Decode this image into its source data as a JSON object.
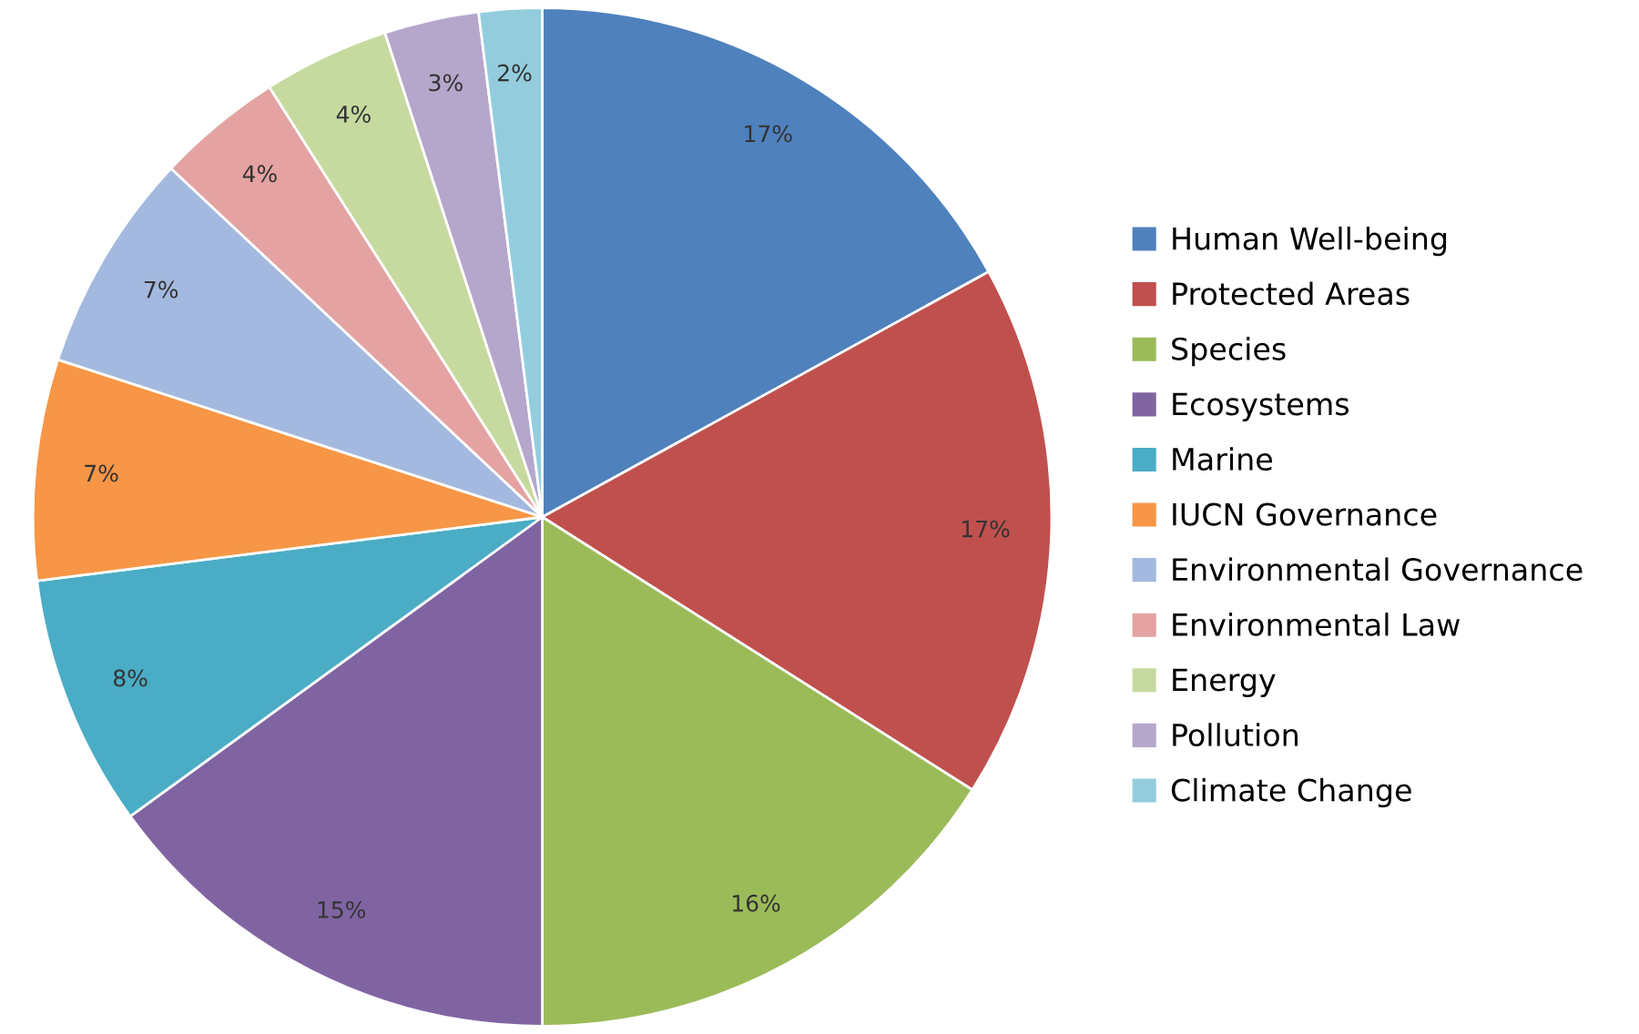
{
  "chart_data": {
    "type": "pie",
    "categories": [
      "Human Well-being",
      "Protected Areas",
      "Species",
      "Ecosystems",
      "Marine",
      "IUCN Governance",
      "Environmental Governance",
      "Environmental Law",
      "Energy",
      "Pollution",
      "Climate Change"
    ],
    "values": [
      17,
      17,
      16,
      15,
      8,
      7,
      7,
      4,
      4,
      3,
      2
    ],
    "colors": [
      "#4f81bd",
      "#c0504d",
      "#9bbb59",
      "#8064a2",
      "#4bacc6",
      "#f79646",
      "#a4b9df",
      "#e4a3a2",
      "#c6da9f",
      "#b5a6cb",
      "#93cddd"
    ],
    "value_labels": [
      "17%",
      "17%",
      "16%",
      "15%",
      "8%",
      "7%",
      "7%",
      "4%",
      "4%",
      "3%",
      "2%"
    ],
    "legend": "right"
  }
}
